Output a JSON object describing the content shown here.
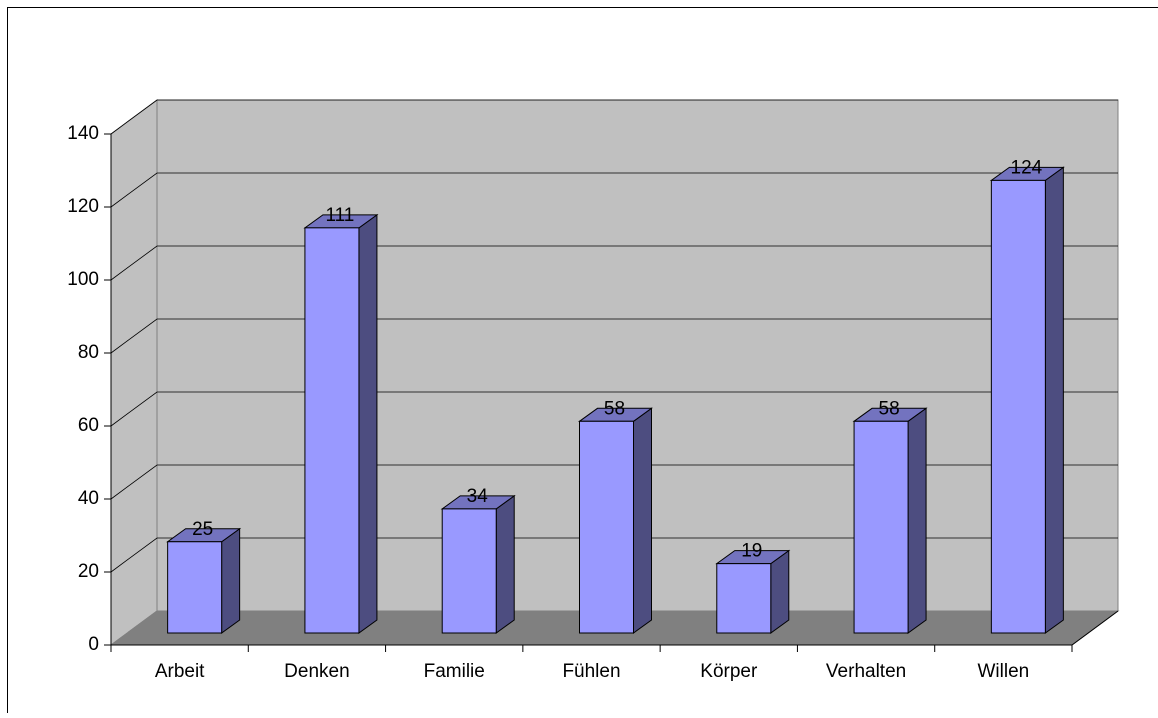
{
  "chart_data": {
    "type": "bar3d",
    "categories": [
      "Arbeit",
      "Denken",
      "Familie",
      "Fühlen",
      "Körper",
      "Verhalten",
      "Willen"
    ],
    "values": [
      25,
      111,
      34,
      58,
      19,
      58,
      124
    ],
    "color": "#9999ff",
    "ylim": [
      0,
      140
    ],
    "yticks": [
      0,
      20,
      40,
      60,
      80,
      100,
      120,
      140
    ],
    "grid": true
  }
}
